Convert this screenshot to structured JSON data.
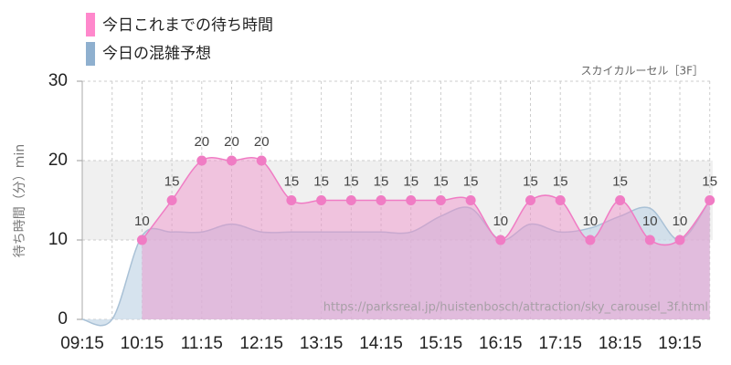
{
  "chart_data": {
    "type": "area",
    "legend": [
      {
        "name": "今日これまでの待ち時間",
        "color": "#ff88cc"
      },
      {
        "name": "今日の混雑予想",
        "color": "#8fb0cf"
      }
    ],
    "subtitle": "スカイカルーセル［3F］",
    "y_label": "待ち時間（分）min",
    "watermark": "https://parksreal.jp/huistenbosch/attraction/sky_carousel_3f.html",
    "categories": [
      "09:15",
      null,
      "10:15",
      null,
      "11:15",
      null,
      "12:15",
      null,
      "13:15",
      null,
      "14:15",
      null,
      "15:15",
      null,
      "16:15",
      null,
      "17:15",
      null,
      "18:15",
      null,
      "19:15",
      null
    ],
    "series": [
      {
        "name": "今日の混雑予想",
        "color": "#a9c1d6",
        "values": [
          0,
          0,
          10.5,
          11,
          11,
          12,
          11,
          11,
          11,
          11,
          11,
          11,
          13,
          14,
          10,
          12,
          11,
          11.5,
          13,
          14,
          10,
          15
        ]
      },
      {
        "name": "今日これまでの待ち時間",
        "color": "#f07cc4",
        "values": [
          null,
          null,
          10,
          15,
          20,
          20,
          20,
          15,
          15,
          15,
          15,
          15,
          15,
          15,
          10,
          15,
          15,
          10,
          15,
          10,
          10,
          15
        ]
      }
    ],
    "ylim": [
      0,
      30
    ],
    "yticks": [
      0,
      10,
      20,
      30
    ],
    "shaded_range": [
      10,
      20
    ],
    "grid": true
  }
}
